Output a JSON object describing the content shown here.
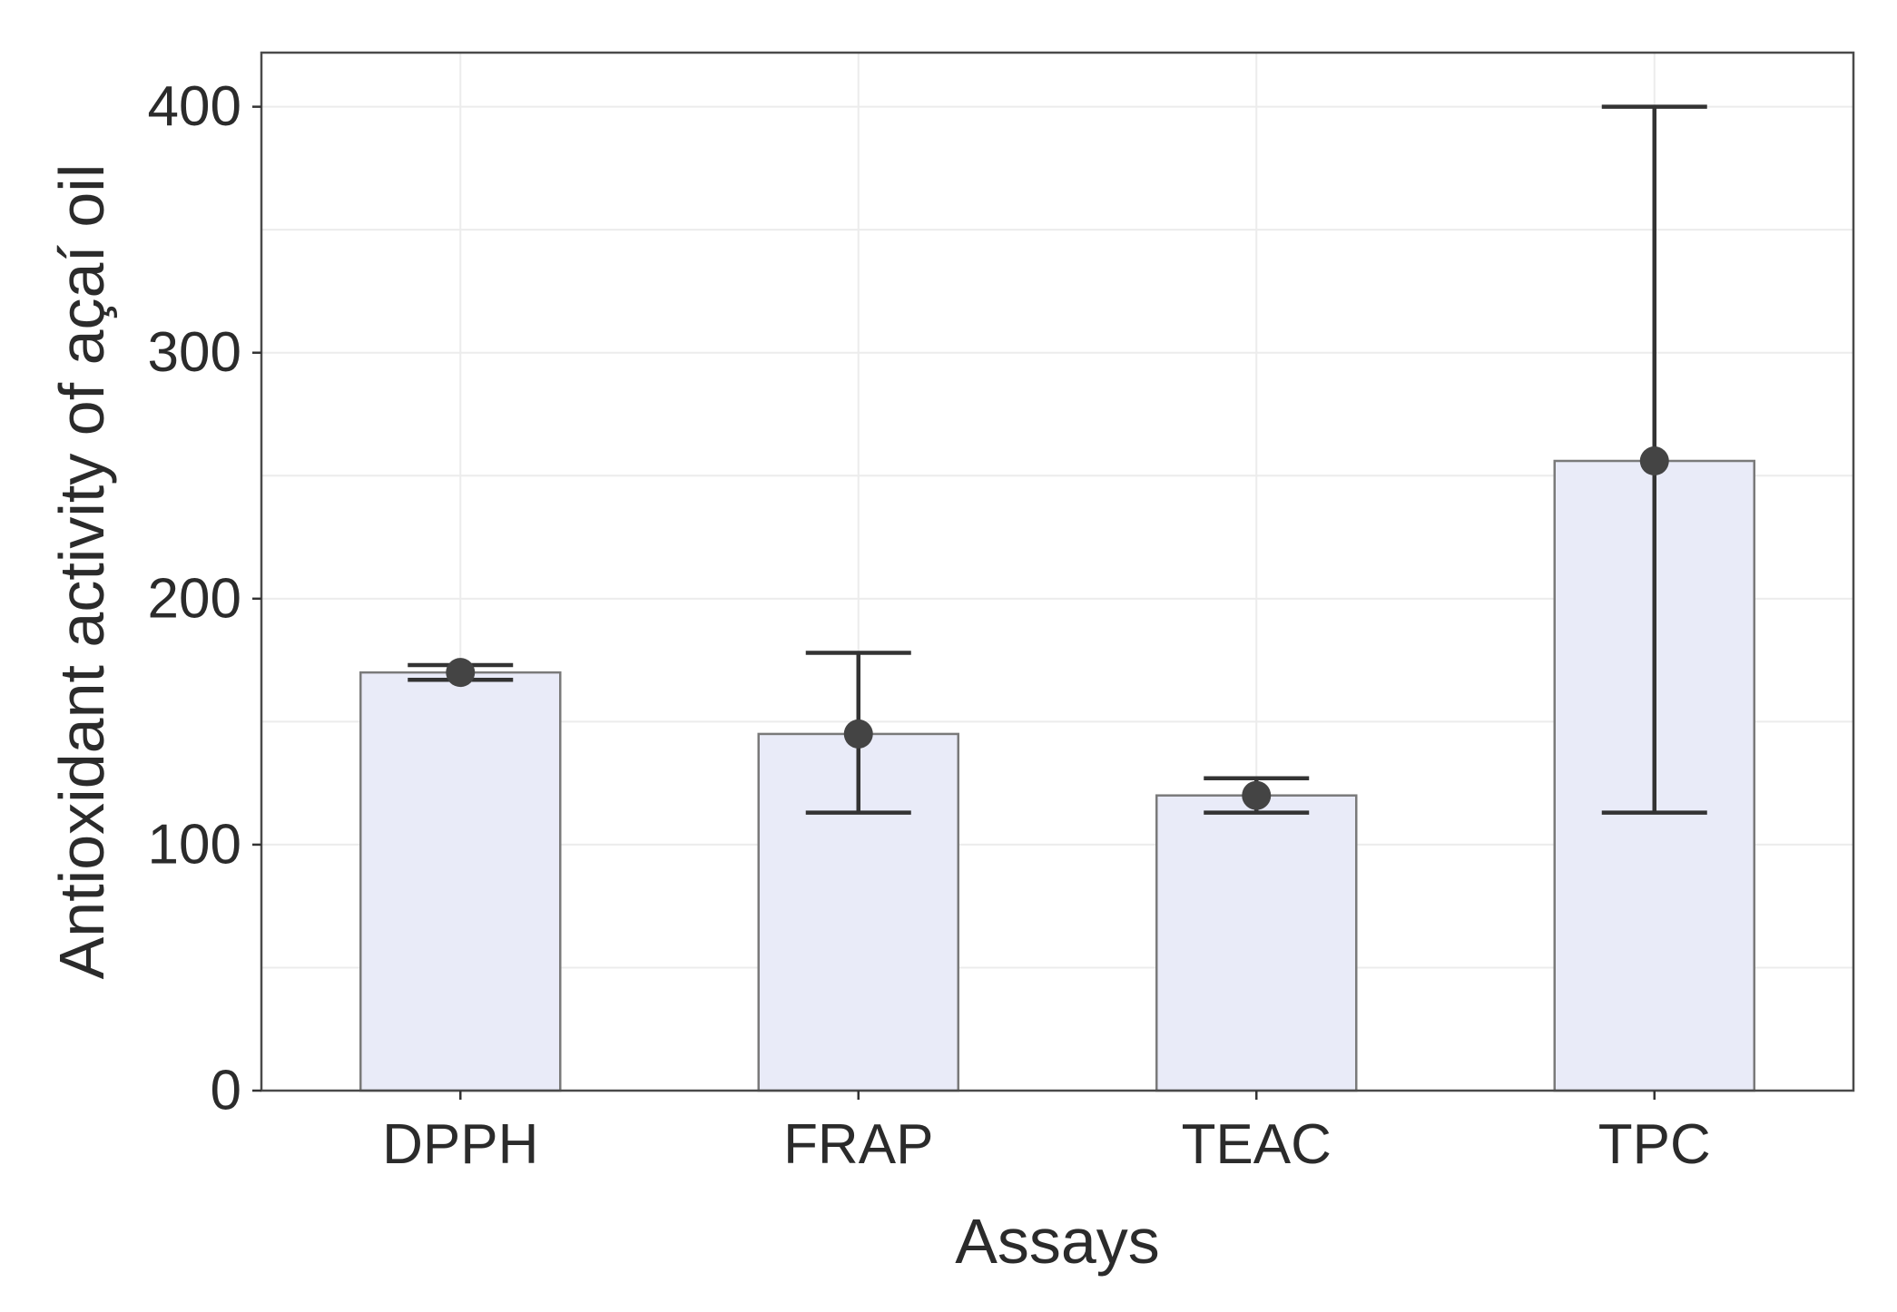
{
  "chart_data": {
    "type": "bar",
    "title": "",
    "xlabel": "Assays",
    "ylabel": "Antioxidant activity of açaí oil",
    "categories": [
      "DPPH",
      "FRAP",
      "TEAC",
      "TPC"
    ],
    "values": [
      170,
      145,
      120,
      256
    ],
    "error_low": [
      167,
      113,
      113,
      113
    ],
    "error_high": [
      173,
      178,
      127,
      400
    ],
    "y_ticks": [
      0,
      100,
      200,
      300,
      400
    ],
    "ylim": [
      0,
      422
    ],
    "grid": true,
    "legend": "none",
    "colors": {
      "bar_fill": "#e9ebf8",
      "bar_stroke": "#7a7a7a",
      "point": "#444444",
      "errorbar": "#333333",
      "grid": "#ececec",
      "panel_border": "#4a4a4a"
    }
  }
}
